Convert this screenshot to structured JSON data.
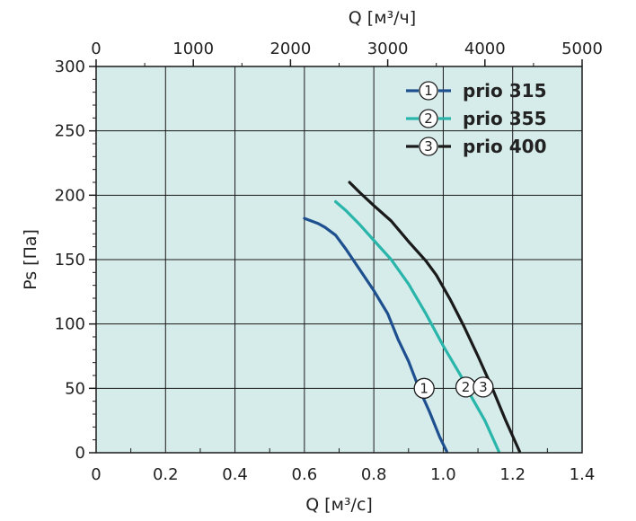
{
  "colors": {
    "plot_bg": "#d6ecea",
    "grid": "#1a1a1a",
    "prio_315": "#1e4f8f",
    "prio_355": "#2ab5aa",
    "prio_400": "#1a1a1a"
  },
  "chart_data": {
    "type": "line",
    "xlabel": "Q [м³/с]",
    "x2label": "Q [м³/ч]",
    "ylabel": "Ps [Па]",
    "xlim": [
      0,
      1.4
    ],
    "x2lim": [
      0,
      5000
    ],
    "ylim": [
      0,
      300
    ],
    "x_ticks": [
      "0",
      "0.2",
      "0.4",
      "0.6",
      "0.8",
      "1.0",
      "1.2",
      "1.4"
    ],
    "x2_ticks": [
      "0",
      "1000",
      "2000",
      "3000",
      "4000",
      "5000"
    ],
    "y_ticks": [
      "0",
      "50",
      "100",
      "150",
      "200",
      "250",
      "300"
    ],
    "grid": true,
    "legend_position": "top-right",
    "series": [
      {
        "name": "prio 315",
        "marker": "1",
        "color_key": "prio_315",
        "points": [
          [
            0.6,
            182
          ],
          [
            0.64,
            178
          ],
          [
            0.66,
            175
          ],
          [
            0.69,
            169
          ],
          [
            0.72,
            158
          ],
          [
            0.76,
            142
          ],
          [
            0.8,
            126
          ],
          [
            0.84,
            108
          ],
          [
            0.87,
            88
          ],
          [
            0.9,
            71
          ],
          [
            0.93,
            50
          ],
          [
            0.96,
            32
          ],
          [
            0.99,
            12
          ],
          [
            1.01,
            1
          ]
        ]
      },
      {
        "name": "prio 355",
        "marker": "2",
        "color_key": "prio_355",
        "points": [
          [
            0.69,
            195
          ],
          [
            0.72,
            188
          ],
          [
            0.76,
            177
          ],
          [
            0.8,
            165
          ],
          [
            0.85,
            150
          ],
          [
            0.9,
            131
          ],
          [
            0.95,
            108
          ],
          [
            1.0,
            83
          ],
          [
            1.05,
            60
          ],
          [
            1.08,
            44
          ],
          [
            1.12,
            25
          ],
          [
            1.16,
            1
          ]
        ]
      },
      {
        "name": "prio 400",
        "marker": "3",
        "color_key": "prio_400",
        "points": [
          [
            0.73,
            210
          ],
          [
            0.76,
            202
          ],
          [
            0.8,
            192
          ],
          [
            0.85,
            180
          ],
          [
            0.9,
            164
          ],
          [
            0.95,
            149
          ],
          [
            0.98,
            138
          ],
          [
            1.02,
            119
          ],
          [
            1.06,
            98
          ],
          [
            1.1,
            75
          ],
          [
            1.14,
            51
          ],
          [
            1.18,
            25
          ],
          [
            1.22,
            1
          ]
        ]
      }
    ],
    "curve_labels": [
      {
        "marker": "1",
        "x": 0.945,
        "y": 50
      },
      {
        "marker": "2",
        "x": 1.065,
        "y": 51
      },
      {
        "marker": "3",
        "x": 1.115,
        "y": 51
      }
    ]
  }
}
